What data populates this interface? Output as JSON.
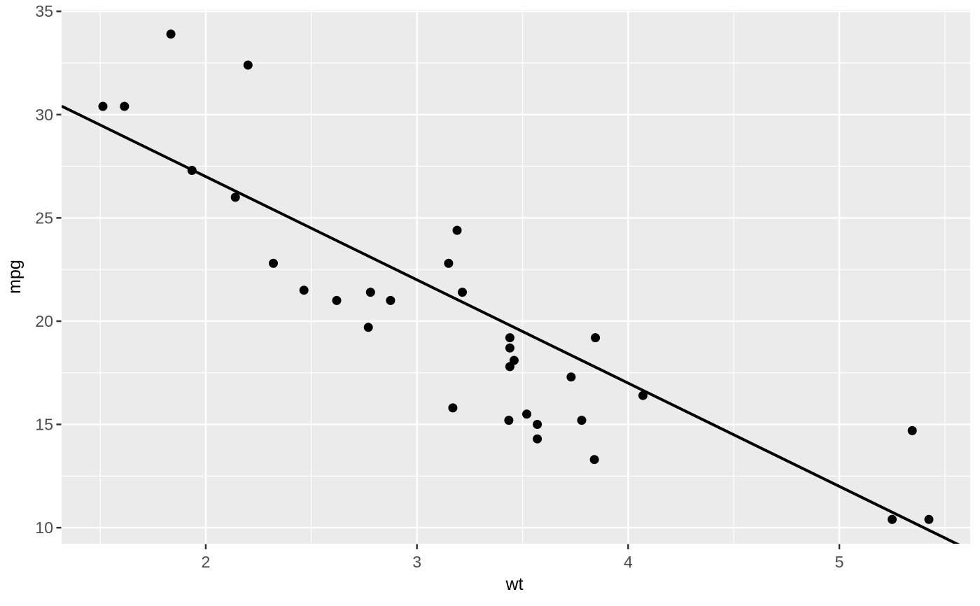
{
  "chart_data": {
    "type": "scatter",
    "title": "",
    "xlabel": "wt",
    "ylabel": "mpg",
    "xlim": [
      1.3175,
      5.6195
    ],
    "ylim": [
      9.225,
      35.075
    ],
    "x_ticks": [
      2,
      3,
      4,
      5
    ],
    "y_ticks": [
      10,
      15,
      20,
      25,
      30,
      35
    ],
    "x_minor_gridlines": [
      1.5,
      2.5,
      3.5,
      4.5,
      5.5
    ],
    "y_minor_gridlines": [
      12.5,
      17.5,
      22.5,
      27.5,
      32.5
    ],
    "grid": "major+minor",
    "legend": "none",
    "line": {
      "type": "abline",
      "intercept": 37,
      "slope": -5
    },
    "points": [
      [
        2.62,
        21.0
      ],
      [
        2.875,
        21.0
      ],
      [
        2.32,
        22.8
      ],
      [
        3.215,
        21.4
      ],
      [
        3.44,
        18.7
      ],
      [
        3.46,
        18.1
      ],
      [
        3.57,
        14.3
      ],
      [
        3.19,
        24.4
      ],
      [
        3.15,
        22.8
      ],
      [
        3.44,
        19.2
      ],
      [
        3.44,
        17.8
      ],
      [
        4.07,
        16.4
      ],
      [
        3.73,
        17.3
      ],
      [
        3.78,
        15.2
      ],
      [
        5.25,
        10.4
      ],
      [
        5.424,
        10.4
      ],
      [
        5.345,
        14.7
      ],
      [
        2.2,
        32.4
      ],
      [
        1.615,
        30.4
      ],
      [
        1.835,
        33.9
      ],
      [
        2.465,
        21.5
      ],
      [
        3.52,
        15.5
      ],
      [
        3.435,
        15.2
      ],
      [
        3.84,
        13.3
      ],
      [
        3.845,
        19.2
      ],
      [
        1.935,
        27.3
      ],
      [
        2.14,
        26.0
      ],
      [
        1.513,
        30.4
      ],
      [
        3.17,
        15.8
      ],
      [
        2.77,
        19.7
      ],
      [
        3.57,
        15.0
      ],
      [
        2.78,
        21.4
      ]
    ]
  },
  "style": {
    "background": "#FFFFFF",
    "panel_background": "#EBEBEB",
    "grid_color": "#FFFFFF",
    "point_color": "#000000",
    "trend_line_color": "#000000",
    "tick_mark_color": "#333333",
    "tick_label_color": "#4D4D4D",
    "axis_title_color": "#000000"
  }
}
